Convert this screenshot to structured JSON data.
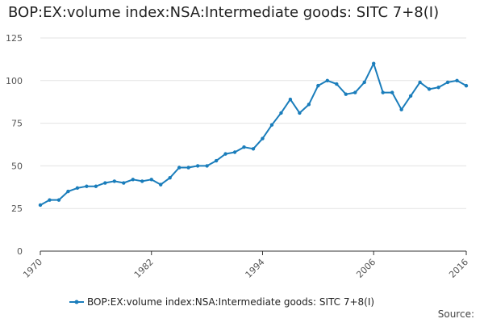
{
  "chart_data": {
    "type": "line",
    "title": "BOP:EX:volume index:NSA:Intermediate goods: SITC 7+8(I)",
    "xlabel": "",
    "ylabel": "",
    "xlim": [
      1970,
      2016
    ],
    "ylim": [
      0,
      125
    ],
    "y_ticks": [
      0,
      25,
      50,
      75,
      100,
      125
    ],
    "x_ticks": [
      "1970",
      "1982",
      "1994",
      "2006",
      "2016"
    ],
    "grid": true,
    "legend_position": "bottom",
    "series": [
      {
        "name": "BOP:EX:volume index:NSA:Intermediate goods: SITC 7+8(I)",
        "color": "#1a7dbb",
        "x": [
          1970,
          1971,
          1972,
          1973,
          1974,
          1975,
          1976,
          1977,
          1978,
          1979,
          1980,
          1981,
          1982,
          1983,
          1984,
          1985,
          1986,
          1987,
          1988,
          1989,
          1990,
          1991,
          1992,
          1993,
          1994,
          1995,
          1996,
          1997,
          1998,
          1999,
          2000,
          2001,
          2002,
          2003,
          2004,
          2005,
          2006,
          2007,
          2008,
          2009,
          2010,
          2011,
          2012,
          2013,
          2014,
          2015,
          2016
        ],
        "values": [
          27,
          30,
          30,
          35,
          37,
          38,
          38,
          40,
          41,
          40,
          42,
          41,
          42,
          39,
          43,
          49,
          49,
          50,
          50,
          53,
          57,
          58,
          61,
          60,
          66,
          74,
          81,
          89,
          81,
          86,
          97,
          100,
          98,
          92,
          93,
          99,
          110,
          93,
          93,
          83,
          91,
          99,
          95,
          96,
          99,
          100,
          97
        ]
      }
    ]
  },
  "source_label": "Source:"
}
